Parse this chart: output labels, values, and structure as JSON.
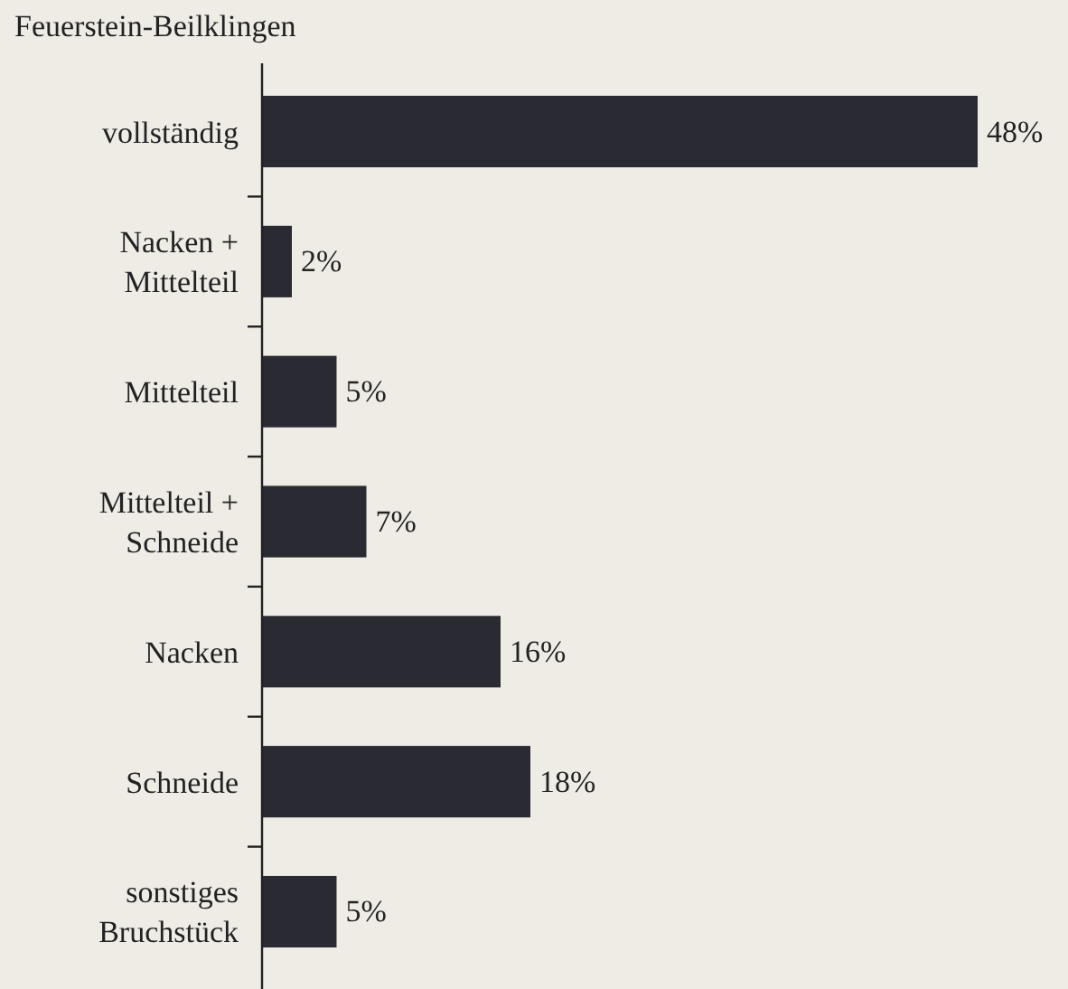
{
  "chart_data": {
    "type": "bar",
    "orientation": "horizontal",
    "title": "Feuerstein-Beilklingen",
    "categories": [
      "vollständig",
      "Nacken + Mittelteil",
      "Mittelteil",
      "Mittelteil + Schneide",
      "Nacken",
      "Schneide",
      "sonstiges Bruchstück"
    ],
    "values": [
      48,
      2,
      5,
      7,
      16,
      18,
      5
    ],
    "value_labels": [
      "48%",
      "2%",
      "5%",
      "7%",
      "16%",
      "18%",
      "5%"
    ],
    "color": "#2a2a33"
  }
}
